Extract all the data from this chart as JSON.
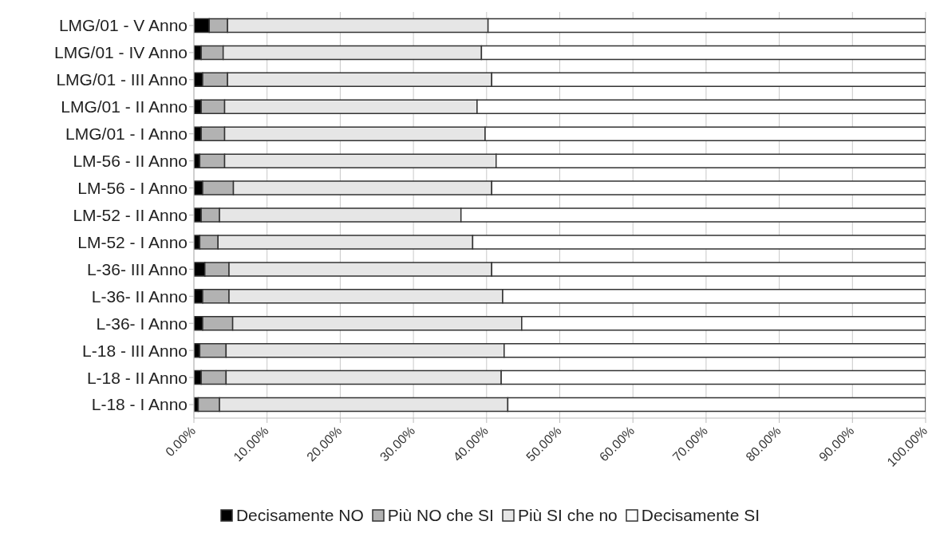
{
  "chart_data": {
    "type": "bar",
    "orientation": "horizontal",
    "stacked": true,
    "categories": [
      "LMG/01 - V Anno",
      "LMG/01 - IV Anno",
      "LMG/01 - III Anno",
      "LMG/01 - II Anno",
      "LMG/01 - I Anno",
      "LM-56  - II Anno",
      "LM-56  - I Anno",
      "LM-52  - II Anno",
      "LM-52  - I Anno",
      "L-36- III Anno",
      "L-36- II Anno",
      "L-36- I Anno",
      "L-18 - III Anno",
      "L-18 - II Anno",
      "L-18 - I Anno"
    ],
    "series": [
      {
        "name": "Decisamente NO",
        "color": "#000000",
        "values": [
          2.1,
          1.0,
          1.2,
          1.0,
          1.0,
          0.8,
          1.2,
          1.0,
          0.8,
          1.5,
          1.2,
          1.2,
          0.8,
          1.0,
          0.6
        ]
      },
      {
        "name": "Più NO che SI",
        "color": "#b2b2b2",
        "values": [
          2.5,
          3.0,
          3.4,
          3.2,
          3.2,
          3.4,
          4.2,
          2.5,
          2.5,
          3.3,
          3.6,
          4.1,
          3.6,
          3.4,
          2.9
        ]
      },
      {
        "name": "Più SI che no",
        "color": "#e6e6e6",
        "values": [
          35.6,
          35.3,
          36.1,
          34.5,
          35.6,
          37.1,
          35.3,
          33.0,
          34.8,
          35.9,
          37.4,
          39.5,
          38.0,
          37.6,
          39.4
        ]
      },
      {
        "name": "Decisamente SI",
        "color": "#ffffff",
        "values": [
          59.8,
          60.7,
          59.3,
          61.3,
          60.2,
          58.7,
          59.3,
          63.5,
          61.9,
          59.3,
          57.8,
          55.2,
          57.6,
          58.0,
          57.1
        ]
      }
    ],
    "xlim": [
      0,
      100
    ],
    "xticks": [
      {
        "value": 0,
        "label": "0.00%"
      },
      {
        "value": 10,
        "label": "10.00%"
      },
      {
        "value": 20,
        "label": "20.00%"
      },
      {
        "value": 30,
        "label": "30.00%"
      },
      {
        "value": 40,
        "label": "40.00%"
      },
      {
        "value": 50,
        "label": "50.00%"
      },
      {
        "value": 60,
        "label": "60.00%"
      },
      {
        "value": 70,
        "label": "70.00%"
      },
      {
        "value": 80,
        "label": "80.00%"
      },
      {
        "value": 90,
        "label": "90.00%"
      },
      {
        "value": 100,
        "label": "100.00%"
      }
    ],
    "grid": "x",
    "legend": "bottom"
  }
}
